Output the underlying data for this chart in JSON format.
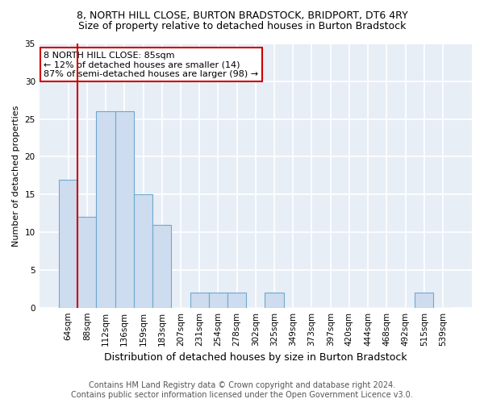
{
  "title1": "8, NORTH HILL CLOSE, BURTON BRADSTOCK, BRIDPORT, DT6 4RY",
  "title2": "Size of property relative to detached houses in Burton Bradstock",
  "xlabel": "Distribution of detached houses by size in Burton Bradstock",
  "ylabel": "Number of detached properties",
  "bar_labels": [
    "64sqm",
    "88sqm",
    "112sqm",
    "136sqm",
    "159sqm",
    "183sqm",
    "207sqm",
    "231sqm",
    "254sqm",
    "278sqm",
    "302sqm",
    "325sqm",
    "349sqm",
    "373sqm",
    "397sqm",
    "420sqm",
    "444sqm",
    "468sqm",
    "492sqm",
    "515sqm",
    "539sqm"
  ],
  "bar_values": [
    17,
    12,
    26,
    26,
    15,
    11,
    0,
    2,
    2,
    2,
    0,
    2,
    0,
    0,
    0,
    0,
    0,
    0,
    0,
    2,
    0
  ],
  "bar_color": "#cddcee",
  "bar_edgecolor": "#6fa8d0",
  "background_color": "#e8eef6",
  "grid_color": "#ffffff",
  "vline_color": "#cc0000",
  "annotation_text": "8 NORTH HILL CLOSE: 85sqm\n← 12% of detached houses are smaller (14)\n87% of semi-detached houses are larger (98) →",
  "annotation_box_color": "#ffffff",
  "annotation_edge_color": "#cc0000",
  "ylim": [
    0,
    35
  ],
  "yticks": [
    0,
    5,
    10,
    15,
    20,
    25,
    30,
    35
  ],
  "footer_line1": "Contains HM Land Registry data © Crown copyright and database right 2024.",
  "footer_line2": "Contains public sector information licensed under the Open Government Licence v3.0.",
  "title1_fontsize": 9,
  "title2_fontsize": 9,
  "xlabel_fontsize": 9,
  "ylabel_fontsize": 8,
  "tick_fontsize": 7.5,
  "annotation_fontsize": 8,
  "footer_fontsize": 7
}
